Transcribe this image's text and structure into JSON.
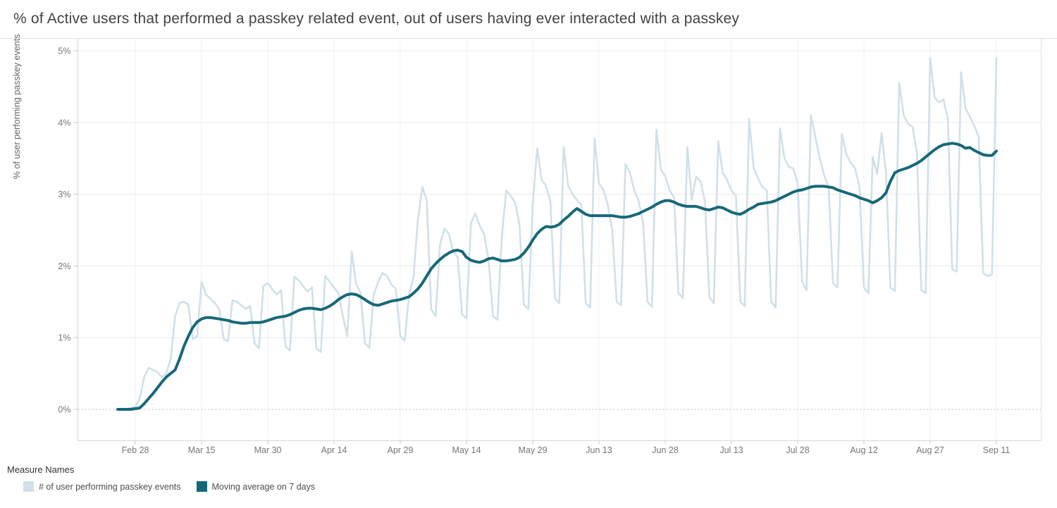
{
  "title": "% of Active users that performed a passkey related event, out of users having ever interacted with a passkey",
  "legend": {
    "title": "Measure Names",
    "items": [
      {
        "label": "# of user performing passkey events",
        "color": "#d1e0e8"
      },
      {
        "label": "Moving average on 7 days",
        "color": "#166878"
      }
    ]
  },
  "chart_data": {
    "type": "line",
    "title": "% of Active users that performed a passkey related event, out of users having ever interacted with a passkey",
    "xlabel": "",
    "ylabel": "% of user performing passkey events",
    "ylim": [
      -0.43,
      5.17
    ],
    "grid": "horizontal solid gridlines at 1-5%, dotted zero line, faint vertical gridlines at date ticks",
    "legend_position": "bottom-left",
    "y_ticks": [
      {
        "value": 0,
        "label": "0%"
      },
      {
        "value": 1,
        "label": "1%"
      },
      {
        "value": 2,
        "label": "2%"
      },
      {
        "value": 3,
        "label": "3%"
      },
      {
        "value": 4,
        "label": "4%"
      },
      {
        "value": 5,
        "label": "5%"
      }
    ],
    "x_ticks": [
      {
        "label": "Feb 28",
        "index": 4
      },
      {
        "label": "Mar 15",
        "index": 19
      },
      {
        "label": "Mar 30",
        "index": 34
      },
      {
        "label": "Apr 14",
        "index": 49
      },
      {
        "label": "Apr 29",
        "index": 64
      },
      {
        "label": "May 14",
        "index": 79
      },
      {
        "label": "May 29",
        "index": 94
      },
      {
        "label": "Jun 13",
        "index": 109
      },
      {
        "label": "Jun 28",
        "index": 124
      },
      {
        "label": "Jul 13",
        "index": 139
      },
      {
        "label": "Jul 28",
        "index": 154
      },
      {
        "label": "Aug 12",
        "index": 169
      },
      {
        "label": "Aug 27",
        "index": 184
      },
      {
        "label": "Sep 11",
        "index": 199
      }
    ],
    "x_start_label": "Feb 24",
    "x_end_label": "Sep 11",
    "n_points": 200,
    "series": [
      {
        "name": "# of user performing passkey events",
        "color": "#d1e0e8",
        "stroke_width": 2.6,
        "values": [
          0.0,
          0.0,
          0.01,
          0.02,
          0.04,
          0.15,
          0.45,
          0.58,
          0.55,
          0.52,
          0.45,
          0.5,
          0.7,
          1.3,
          1.48,
          1.5,
          1.46,
          0.98,
          1.02,
          1.78,
          1.6,
          1.54,
          1.48,
          1.4,
          0.98,
          0.95,
          1.52,
          1.5,
          1.45,
          1.4,
          1.44,
          0.92,
          0.85,
          1.72,
          1.76,
          1.68,
          1.6,
          1.66,
          0.88,
          0.82,
          1.85,
          1.8,
          1.72,
          1.64,
          1.7,
          0.85,
          0.8,
          1.86,
          1.78,
          1.7,
          1.62,
          1.3,
          1.02,
          2.2,
          1.75,
          1.62,
          0.92,
          0.86,
          1.6,
          1.78,
          1.9,
          1.86,
          1.74,
          1.68,
          1.02,
          0.96,
          1.6,
          1.85,
          2.65,
          3.1,
          2.92,
          1.4,
          1.3,
          2.3,
          2.52,
          2.45,
          2.2,
          2.12,
          1.32,
          1.27,
          2.6,
          2.73,
          2.56,
          2.44,
          2.08,
          1.3,
          1.25,
          2.42,
          3.05,
          2.98,
          2.88,
          2.58,
          1.46,
          1.4,
          2.85,
          3.64,
          3.2,
          3.12,
          2.9,
          1.55,
          1.48,
          3.66,
          3.12,
          3.0,
          2.92,
          2.85,
          1.48,
          1.42,
          3.78,
          3.15,
          3.06,
          2.85,
          2.5,
          1.5,
          1.45,
          3.42,
          3.3,
          3.05,
          2.9,
          2.6,
          1.5,
          1.43,
          3.9,
          3.35,
          3.25,
          3.06,
          2.95,
          1.62,
          1.55,
          3.66,
          2.92,
          3.24,
          3.18,
          2.9,
          1.56,
          1.48,
          3.74,
          3.3,
          3.2,
          3.05,
          2.98,
          1.5,
          1.44,
          4.05,
          3.38,
          3.22,
          3.1,
          3.05,
          1.5,
          1.42,
          3.92,
          3.5,
          3.38,
          3.36,
          3.15,
          1.78,
          1.66,
          4.1,
          3.8,
          3.5,
          3.26,
          3.1,
          1.76,
          1.7,
          3.84,
          3.56,
          3.44,
          3.36,
          3.1,
          1.7,
          1.62,
          3.52,
          3.28,
          3.85,
          3.3,
          1.7,
          1.65,
          4.55,
          4.1,
          3.98,
          3.94,
          3.58,
          1.66,
          1.62,
          4.9,
          4.35,
          4.28,
          4.32,
          4.05,
          1.95,
          1.92,
          4.7,
          4.2,
          4.08,
          3.95,
          3.8,
          1.9,
          1.86,
          1.88,
          4.9
        ]
      },
      {
        "name": "Moving average on 7 days",
        "color": "#166878",
        "stroke_width": 4,
        "values": [
          0.0,
          0.0,
          0.0,
          0.0,
          0.01,
          0.02,
          0.08,
          0.15,
          0.22,
          0.3,
          0.38,
          0.45,
          0.5,
          0.55,
          0.7,
          0.88,
          1.02,
          1.14,
          1.22,
          1.26,
          1.28,
          1.28,
          1.27,
          1.26,
          1.25,
          1.24,
          1.22,
          1.21,
          1.2,
          1.2,
          1.21,
          1.21,
          1.21,
          1.22,
          1.24,
          1.26,
          1.28,
          1.29,
          1.3,
          1.32,
          1.35,
          1.38,
          1.4,
          1.41,
          1.41,
          1.4,
          1.39,
          1.41,
          1.44,
          1.48,
          1.53,
          1.57,
          1.6,
          1.61,
          1.6,
          1.57,
          1.53,
          1.49,
          1.46,
          1.45,
          1.47,
          1.49,
          1.51,
          1.52,
          1.53,
          1.55,
          1.57,
          1.62,
          1.68,
          1.76,
          1.86,
          1.96,
          2.03,
          2.09,
          2.14,
          2.18,
          2.21,
          2.22,
          2.2,
          2.12,
          2.08,
          2.06,
          2.05,
          2.07,
          2.1,
          2.11,
          2.09,
          2.07,
          2.07,
          2.08,
          2.09,
          2.12,
          2.18,
          2.26,
          2.36,
          2.45,
          2.51,
          2.55,
          2.54,
          2.55,
          2.58,
          2.64,
          2.69,
          2.75,
          2.8,
          2.76,
          2.72,
          2.7,
          2.7,
          2.7,
          2.7,
          2.7,
          2.7,
          2.69,
          2.68,
          2.68,
          2.69,
          2.71,
          2.73,
          2.76,
          2.79,
          2.82,
          2.86,
          2.89,
          2.91,
          2.91,
          2.89,
          2.86,
          2.84,
          2.83,
          2.83,
          2.83,
          2.81,
          2.79,
          2.78,
          2.8,
          2.82,
          2.81,
          2.78,
          2.75,
          2.73,
          2.72,
          2.75,
          2.79,
          2.82,
          2.86,
          2.87,
          2.88,
          2.89,
          2.91,
          2.94,
          2.97,
          3.0,
          3.03,
          3.05,
          3.06,
          3.08,
          3.1,
          3.11,
          3.11,
          3.11,
          3.1,
          3.09,
          3.06,
          3.04,
          3.02,
          3.0,
          2.98,
          2.95,
          2.93,
          2.91,
          2.88,
          2.91,
          2.95,
          3.02,
          3.18,
          3.3,
          3.33,
          3.35,
          3.37,
          3.4,
          3.43,
          3.47,
          3.52,
          3.57,
          3.62,
          3.66,
          3.69,
          3.7,
          3.71,
          3.7,
          3.68,
          3.64,
          3.65,
          3.61,
          3.58,
          3.55,
          3.54,
          3.54,
          3.6
        ]
      }
    ],
    "style": {
      "gridline_color": "#ececec",
      "vertical_gridline_color": "#f2f2f2",
      "zero_line_color": "#c9c9c9",
      "axis_line_color": "#d6d6d6",
      "border_color": "#e2e2e2",
      "tick_color": "#c9c9c9",
      "tick_label_color": "#767676"
    }
  }
}
